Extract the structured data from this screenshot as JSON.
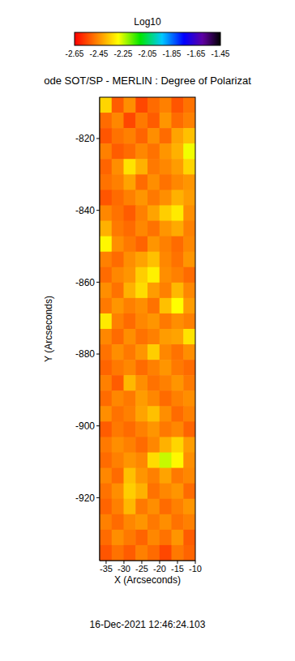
{
  "chart_data": {
    "type": "heatmap",
    "title": "ode SOT/SP - MERLIN : Degree of Polarizat",
    "x_label": "X (Arcseconds)",
    "y_label": "Y (Arcseconds)",
    "x": [
      -35.125,
      -31.775,
      -28.425,
      -25.075,
      -21.725,
      -18.375,
      -15.025,
      -11.675
    ],
    "y": [
      -810.65,
      -814.95,
      -819.25,
      -823.55,
      -827.85,
      -832.15,
      -836.45,
      -840.75,
      -845.05,
      -849.35,
      -853.65,
      -857.95,
      -862.25,
      -866.55,
      -870.85,
      -875.15,
      -879.45,
      -883.75,
      -888.05,
      -892.35,
      -896.65,
      -900.95,
      -905.25,
      -909.55,
      -913.85,
      -918.15,
      -922.45,
      -926.75,
      -931.05,
      -935.35
    ],
    "values": [
      [
        -2.35,
        -2.52,
        -2.45,
        -2.55,
        -2.5,
        -2.47,
        -2.53,
        -2.49
      ],
      [
        -2.5,
        -2.46,
        -2.55,
        -2.48,
        -2.52,
        -2.44,
        -2.5,
        -2.47
      ],
      [
        -2.53,
        -2.49,
        -2.47,
        -2.51,
        -2.45,
        -2.5,
        -2.42,
        -2.38
      ],
      [
        -2.47,
        -2.52,
        -2.5,
        -2.46,
        -2.49,
        -2.44,
        -2.4,
        -2.28
      ],
      [
        -2.51,
        -2.45,
        -2.33,
        -2.4,
        -2.48,
        -2.46,
        -2.43,
        -2.35
      ],
      [
        -2.49,
        -2.47,
        -2.42,
        -2.5,
        -2.45,
        -2.49,
        -2.46,
        -2.44
      ],
      [
        -2.53,
        -2.5,
        -2.47,
        -2.44,
        -2.48,
        -2.45,
        -2.4,
        -2.43
      ],
      [
        -2.46,
        -2.49,
        -2.52,
        -2.47,
        -2.42,
        -2.36,
        -2.32,
        -2.45
      ],
      [
        -2.4,
        -2.48,
        -2.5,
        -2.46,
        -2.49,
        -2.44,
        -2.41,
        -2.47
      ],
      [
        -2.3,
        -2.45,
        -2.48,
        -2.51,
        -2.44,
        -2.47,
        -2.5,
        -2.46
      ],
      [
        -2.47,
        -2.5,
        -2.45,
        -2.42,
        -2.38,
        -2.46,
        -2.49,
        -2.44
      ],
      [
        -2.5,
        -2.46,
        -2.44,
        -2.36,
        -2.31,
        -2.45,
        -2.47,
        -2.5
      ],
      [
        -2.45,
        -2.49,
        -2.4,
        -2.34,
        -2.43,
        -2.47,
        -2.39,
        -2.46
      ],
      [
        -2.48,
        -2.44,
        -2.47,
        -2.45,
        -2.49,
        -2.38,
        -2.29,
        -2.43
      ],
      [
        -2.32,
        -2.47,
        -2.5,
        -2.46,
        -2.44,
        -2.48,
        -2.45,
        -2.47
      ],
      [
        -2.46,
        -2.5,
        -2.45,
        -2.49,
        -2.47,
        -2.43,
        -2.42,
        -2.33
      ],
      [
        -2.49,
        -2.45,
        -2.48,
        -2.44,
        -2.36,
        -2.46,
        -2.49,
        -2.45
      ],
      [
        -2.51,
        -2.48,
        -2.46,
        -2.5,
        -2.47,
        -2.44,
        -2.48,
        -2.5
      ],
      [
        -2.47,
        -2.52,
        -2.39,
        -2.45,
        -2.49,
        -2.47,
        -2.44,
        -2.48
      ],
      [
        -2.5,
        -2.46,
        -2.48,
        -2.43,
        -2.46,
        -2.5,
        -2.47,
        -2.45
      ],
      [
        -2.45,
        -2.49,
        -2.47,
        -2.42,
        -2.38,
        -2.45,
        -2.5,
        -2.47
      ],
      [
        -2.52,
        -2.48,
        -2.5,
        -2.47,
        -2.44,
        -2.48,
        -2.46,
        -2.51
      ],
      [
        -2.48,
        -2.45,
        -2.47,
        -2.5,
        -2.46,
        -2.4,
        -2.35,
        -2.43
      ],
      [
        -2.5,
        -2.47,
        -2.44,
        -2.46,
        -2.34,
        -2.25,
        -2.3,
        -2.45
      ],
      [
        -2.46,
        -2.5,
        -2.38,
        -2.44,
        -2.47,
        -2.42,
        -2.48,
        -2.46
      ],
      [
        -2.49,
        -2.45,
        -2.36,
        -2.4,
        -2.49,
        -2.46,
        -2.44,
        -2.5
      ],
      [
        -2.51,
        -2.47,
        -2.39,
        -2.48,
        -2.45,
        -2.5,
        -2.47,
        -2.44
      ],
      [
        -2.47,
        -2.5,
        -2.46,
        -2.44,
        -2.48,
        -2.45,
        -2.49,
        -2.47
      ],
      [
        -2.5,
        -2.45,
        -2.48,
        -2.51,
        -2.46,
        -2.49,
        -2.44,
        -2.52
      ],
      [
        -2.53,
        -2.49,
        -2.52,
        -2.47,
        -2.5,
        -2.55,
        -2.48,
        -2.51
      ]
    ],
    "xlim": [
      -36.8,
      -10
    ],
    "ylim": [
      -937.5,
      -808.5
    ],
    "xticks": [
      -35,
      -30,
      -25,
      -20,
      -15,
      -10
    ],
    "yticks": [
      -920,
      -900,
      -880,
      -860,
      -840,
      -820
    ],
    "colorbar": {
      "label": "Log10",
      "range": [
        -2.65,
        -1.45
      ],
      "ticks": [
        -2.65,
        -2.45,
        -2.25,
        -2.05,
        -1.85,
        -1.65,
        -1.45
      ]
    },
    "annotations": [
      "16-Dec-2021 12:46:24.103"
    ]
  }
}
